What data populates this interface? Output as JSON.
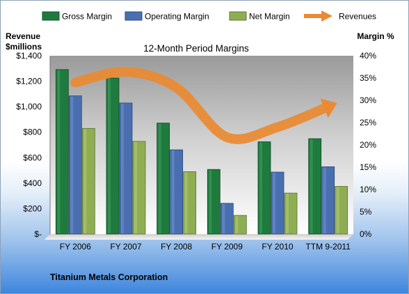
{
  "chart_data": {
    "type": "bar",
    "title": "12-Month Period Margins",
    "categories": [
      "FY 2006",
      "FY 2007",
      "FY 2008",
      "FY 2009",
      "FY 2010",
      "TTM 9-2011"
    ],
    "series": [
      {
        "name": "Gross Margin",
        "axis": "right",
        "values": [
          36.9,
          35.0,
          24.9,
          14.5,
          20.7,
          21.4
        ],
        "color": "#1f7a3e"
      },
      {
        "name": "Operating Margin",
        "axis": "right",
        "values": [
          31.0,
          29.4,
          18.9,
          6.9,
          13.9,
          15.1
        ],
        "color": "#4a6fb0"
      },
      {
        "name": "Net Margin",
        "axis": "right",
        "values": [
          23.7,
          20.8,
          14.0,
          4.2,
          9.2,
          10.7
        ],
        "color": "#8fad52"
      }
    ],
    "revenues": {
      "name": "Revenues",
      "axis": "left",
      "values": [
        1190,
        1275,
        1150,
        760,
        840,
        1000
      ],
      "color": "#ea8a32"
    },
    "left_axis": {
      "label_line1": "Revenue",
      "label_line2": "$millions",
      "ylim": [
        0,
        1400
      ],
      "ticks": [
        "$-",
        "$200",
        "$400",
        "$600",
        "$800",
        "$1,000",
        "$1,200",
        "$1,400"
      ]
    },
    "right_axis": {
      "label": "Margin %",
      "ylim": [
        0,
        40
      ],
      "ticks": [
        "0%",
        "5%",
        "10%",
        "15%",
        "20%",
        "25%",
        "30%",
        "35%",
        "40%"
      ]
    },
    "legend_position": "top",
    "grid": false
  },
  "footer": {
    "company": "Titanium Metals Corporation"
  }
}
